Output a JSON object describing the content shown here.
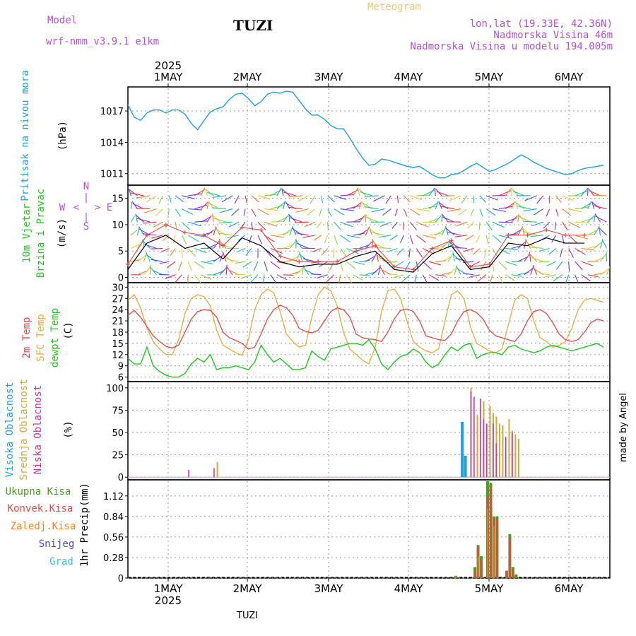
{
  "header": {
    "model_label": "Model",
    "model_value": "wrf-nmm_v3.9.1  e1km",
    "station": "TUZI",
    "meteogram": "Meteogram",
    "lonlat": "lon,lat (19.33E, 42.36N)",
    "altitude": "Nadmorska Visina 46m",
    "model_altitude": "Nadmorska Visina u modelu 194.005m",
    "footer_station": "TUZI",
    "credit": "made by Angel"
  },
  "colors": {
    "pressure": "#1ea0e6",
    "temp2m": "#e64646",
    "sfc": "#e6aa3c",
    "dewpt": "#1ec81e",
    "cloud_high": "#1ea0e6",
    "cloud_mid": "#d2aa3c",
    "cloud_low": "#d2329b",
    "rain_total": "#46a01e",
    "rain_conv": "#e64646",
    "rain_frz": "#f08228",
    "snow": "#4646e6",
    "hail": "#32c8c8",
    "purple": "#b450dc",
    "gold": "#f0c878"
  },
  "axes": {
    "year": "2025",
    "days": [
      "1MAY",
      "2MAY",
      "3MAY",
      "4MAY",
      "5MAY",
      "6MAY"
    ]
  },
  "panel_labels": {
    "pressure": [
      "Pritisak na nivou mora",
      "(hPa)"
    ],
    "wind": [
      "10m Vjetar",
      "Brzina i Pravac",
      "(m/s)"
    ],
    "wind_compass": [
      "N",
      "W",
      "E",
      "S",
      "<",
      ">",
      "|"
    ],
    "temp": [
      "2m Temp",
      "SFC Temp",
      "dewpt Temp",
      "(C)"
    ],
    "cloud": [
      "Visoka Oblacnost",
      "Srednja Oblacnost",
      "Niska Oblacnost",
      "(%)"
    ],
    "precip": [
      "Ukupna Kisa",
      "Konvek.Kisa",
      "Zaledj.Kisa",
      "Snijeg",
      "Grad",
      "1hr Precip",
      "(mm)"
    ]
  },
  "chart_data": [
    {
      "type": "line",
      "name": "pressure",
      "ylabel": "(hPa)",
      "yticks": [
        1011,
        1014,
        1017
      ],
      "ylim": [
        1009.9,
        1019.3
      ],
      "x": [
        0,
        1,
        2,
        3,
        4,
        5,
        6,
        7,
        8,
        9,
        10,
        11,
        12,
        13,
        14,
        15,
        16,
        17,
        18,
        19,
        20,
        21,
        22,
        23,
        24,
        25,
        26,
        27,
        28,
        29,
        30,
        31,
        32,
        33,
        34,
        35,
        36,
        37,
        38,
        39,
        40,
        41,
        42,
        43,
        44,
        45,
        46,
        47,
        48,
        49,
        50,
        51,
        52,
        53,
        54,
        55,
        56,
        57,
        58,
        59,
        60,
        61,
        62,
        63,
        64,
        65,
        66,
        67,
        68,
        69,
        70,
        71,
        72,
        73,
        74,
        75
      ],
      "series": [
        {
          "values": [
            1017.6,
            1016.4,
            1016.1,
            1016.8,
            1017.1,
            1017.1,
            1016.8,
            1017.1,
            1017.1,
            1016.7,
            1015.8,
            1015.2,
            1016.1,
            1016.9,
            1017.2,
            1017.4,
            1018.1,
            1018.6,
            1018.7,
            1018.2,
            1017.5,
            1017.9,
            1018.6,
            1018.8,
            1018.7,
            1018.9,
            1018.8,
            1018.0,
            1017.2,
            1016.6,
            1016.6,
            1016.2,
            1015.6,
            1015.3,
            1015.3,
            1014.4,
            1013.4,
            1012.5,
            1011.8,
            1011.9,
            1012.4,
            1012.3,
            1012.1,
            1011.9,
            1011.7,
            1011.6,
            1011.7,
            1011.3,
            1010.9,
            1010.6,
            1010.6,
            1010.9,
            1011.0,
            1011.3,
            1011.7,
            1012.0,
            1011.6,
            1011.2,
            1011.4,
            1011.7,
            1012.0,
            1012.4,
            1012.8,
            1012.5,
            1012.1,
            1011.8,
            1011.5,
            1011.3,
            1011.1,
            1010.9,
            1011.0,
            1011.3,
            1011.5,
            1011.6,
            1011.7,
            1011.8
          ]
        }
      ]
    },
    {
      "type": "line",
      "name": "wind",
      "ylabel": "(m/s)",
      "yticks": [
        0,
        5,
        10,
        15
      ],
      "ylim": [
        -1,
        17.5
      ],
      "x": [
        0,
        3,
        6,
        9,
        12,
        15,
        18,
        21,
        24,
        27,
        30,
        33,
        36,
        39,
        42,
        45,
        48,
        51,
        54,
        57,
        60,
        63,
        66,
        69,
        72
      ],
      "series": [
        {
          "values": [
            1.5,
            6.5,
            8.0,
            5.5,
            6.5,
            3.5,
            7.5,
            6.0,
            3.0,
            2.0,
            2.5,
            2.5,
            4.0,
            5.0,
            1.5,
            1.0,
            4.5,
            6.0,
            1.5,
            2.0,
            6.5,
            6.0,
            7.5,
            6.5,
            6.5
          ]
        },
        {
          "values": [
            2.5,
            8.0,
            10.0,
            8.5,
            8.0,
            6.0,
            9.5,
            9.0,
            4.0,
            3.0,
            3.0,
            3.0,
            5.0,
            6.0,
            2.0,
            1.5,
            5.5,
            7.0,
            2.0,
            2.5,
            8.0,
            8.0,
            9.0,
            8.0,
            8.0
          ]
        }
      ]
    },
    {
      "type": "line",
      "name": "temperature",
      "ylabel": "(C)",
      "yticks": [
        6,
        9,
        12,
        15,
        18,
        21,
        24,
        27,
        30
      ],
      "ylim": [
        4.8,
        31.2
      ],
      "x": [
        0,
        1,
        2,
        3,
        4,
        5,
        6,
        7,
        8,
        9,
        10,
        11,
        12,
        13,
        14,
        15,
        16,
        17,
        18,
        19,
        20,
        21,
        22,
        23,
        24,
        25,
        26,
        27,
        28,
        29,
        30,
        31,
        32,
        33,
        34,
        35,
        36,
        37,
        38,
        39,
        40,
        41,
        42,
        43,
        44,
        45,
        46,
        47,
        48,
        49,
        50,
        51,
        52,
        53,
        54,
        55,
        56,
        57,
        58,
        59,
        60,
        61,
        62,
        63,
        64,
        65,
        66,
        67,
        68,
        69,
        70,
        71,
        72,
        73,
        74,
        75
      ],
      "series": [
        {
          "values": [
            22.5,
            23.8,
            22.0,
            19.5,
            17.0,
            15.5,
            14.2,
            13.8,
            14.5,
            18.0,
            21.5,
            23.5,
            24.0,
            23.8,
            22.0,
            18.0,
            16.5,
            15.8,
            15.0,
            13.5,
            14.0,
            17.5,
            21.5,
            24.0,
            25.2,
            24.5,
            22.5,
            19.0,
            18.2,
            17.8,
            18.5,
            21.0,
            23.5,
            24.5,
            24.0,
            22.0,
            17.5,
            16.5,
            16.2,
            16.0,
            15.5,
            18.0,
            21.5,
            23.8,
            24.2,
            23.5,
            21.0,
            17.0,
            16.5,
            16.0,
            15.8,
            17.5,
            21.0,
            23.5,
            24.0,
            23.2,
            21.5,
            18.5,
            17.0,
            16.5,
            16.0,
            15.5,
            17.5,
            21.0,
            23.5,
            24.0,
            23.0,
            20.5,
            17.5,
            16.0,
            15.5,
            16.0,
            18.0,
            20.5,
            21.5,
            21.0
          ]
        },
        {
          "values": [
            26.5,
            28.0,
            24.5,
            19.0,
            15.5,
            13.5,
            12.0,
            12.0,
            16.0,
            23.0,
            27.0,
            28.0,
            27.5,
            25.0,
            18.5,
            14.5,
            13.5,
            12.5,
            11.8,
            16.0,
            24.0,
            28.0,
            29.5,
            28.5,
            23.5,
            17.5,
            15.5,
            14.0,
            14.5,
            22.0,
            28.0,
            30.0,
            29.0,
            25.0,
            18.0,
            13.5,
            12.0,
            10.5,
            9.5,
            14.0,
            23.5,
            29.0,
            29.5,
            27.0,
            21.0,
            15.5,
            14.0,
            13.0,
            12.5,
            13.5,
            21.0,
            28.0,
            29.0,
            27.0,
            19.5,
            15.0,
            14.0,
            13.0,
            12.5,
            13.5,
            20.0,
            26.5,
            28.0,
            27.0,
            21.0,
            16.5,
            15.5,
            14.0,
            14.5,
            15.5,
            19.0,
            24.0,
            26.5,
            27.0,
            26.5,
            26.0
          ]
        },
        {
          "values": [
            11.0,
            9.5,
            9.5,
            14.0,
            9.0,
            7.5,
            6.5,
            6.0,
            6.0,
            7.0,
            9.5,
            11.0,
            10.0,
            12.0,
            8.0,
            8.5,
            8.5,
            9.0,
            8.5,
            8.0,
            10.0,
            14.5,
            12.0,
            10.0,
            11.0,
            9.5,
            8.0,
            8.0,
            8.5,
            13.0,
            11.5,
            10.5,
            13.5,
            14.0,
            14.5,
            15.0,
            15.0,
            14.5,
            16.0,
            13.5,
            9.5,
            8.0,
            10.0,
            11.5,
            12.0,
            13.5,
            12.5,
            10.0,
            8.5,
            9.5,
            12.0,
            14.0,
            13.0,
            14.5,
            15.0,
            11.0,
            12.0,
            12.5,
            12.5,
            12.0,
            14.0,
            14.5,
            13.5,
            13.0,
            12.5,
            13.0,
            14.0,
            14.5,
            14.0,
            13.5,
            13.0,
            13.5,
            14.0,
            14.5,
            15.0,
            14.0
          ]
        }
      ]
    },
    {
      "type": "bar",
      "name": "cloud",
      "ylabel": "(%)",
      "yticks": [
        0,
        25,
        50,
        75,
        100
      ],
      "ylim": [
        -3,
        107
      ],
      "series": [
        {
          "x": [
            52.5,
            53.0
          ],
          "values": [
            62,
            24
          ]
        },
        {
          "x": [
            14.0,
            54.0,
            55.0,
            56.0,
            57.0,
            57.5,
            58.0,
            58.5,
            59.0,
            60.0,
            60.5,
            61.0,
            61.5
          ],
          "values": [
            17,
            100,
            70,
            85,
            80,
            72,
            68,
            60,
            58,
            65,
            52,
            48,
            43
          ]
        },
        {
          "x": [
            9.5,
            13.5,
            54.0,
            54.5,
            55.5,
            56.0,
            56.5,
            57.5,
            58.0,
            59.5,
            60.5
          ],
          "values": [
            8,
            10,
            96,
            90,
            88,
            65,
            60,
            60,
            38,
            45,
            50
          ]
        }
      ]
    },
    {
      "type": "bar",
      "name": "precipitation",
      "ylabel": "1hr Precip (mm)",
      "yticks": [
        0,
        0.28,
        0.56,
        0.84,
        1.12
      ],
      "ylim": [
        0,
        1.34
      ],
      "series": [
        {
          "x": [
            51.5,
            54.5,
            55.0,
            55.5,
            56.5,
            57.0,
            57.5,
            58.0,
            59.5,
            60.0,
            60.5,
            61.0
          ],
          "values": [
            0.03,
            0.15,
            0.45,
            0.3,
            1.32,
            1.3,
            0.84,
            0.84,
            0.1,
            0.6,
            0.15,
            0.05
          ]
        },
        {
          "x": [
            54.5,
            55.0,
            55.5,
            56.5,
            57.0,
            57.5,
            58.0,
            59.5,
            60.0,
            60.5
          ],
          "values": [
            0.1,
            0.43,
            0.25,
            1.1,
            1.25,
            0.82,
            0.8,
            0.1,
            0.55,
            0.12
          ]
        },
        {
          "x": [
            51.5,
            55.0,
            56.5,
            57.5
          ],
          "values": [
            0.03,
            0.3,
            0.95,
            0.7
          ]
        }
      ]
    }
  ]
}
